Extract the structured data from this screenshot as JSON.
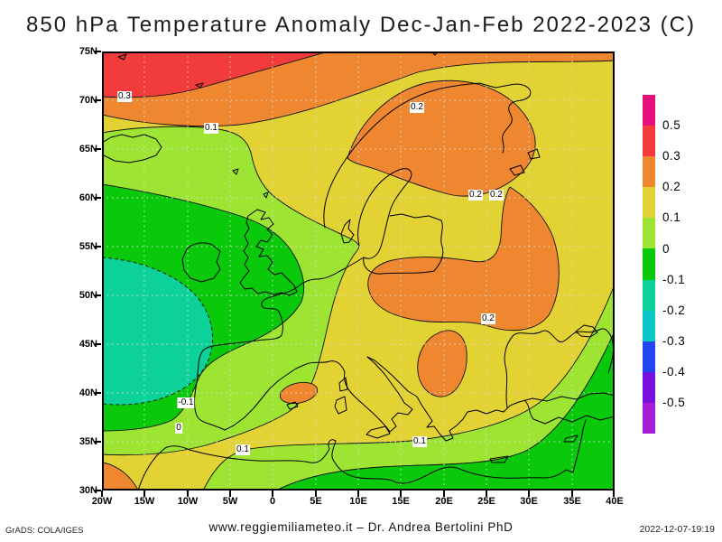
{
  "title": "850 hPa Temperature Anomaly Dec-Jan-Feb 2022-2023 (C)",
  "axes": {
    "lat_ticks": [
      "75N",
      "70N",
      "65N",
      "60N",
      "55N",
      "50N",
      "45N",
      "40N",
      "35N",
      "30N"
    ],
    "lon_ticks": [
      "20W",
      "15W",
      "10W",
      "5W",
      "0",
      "5E",
      "10E",
      "15E",
      "20E",
      "25E",
      "30E",
      "35E",
      "40E"
    ]
  },
  "colorbar": {
    "labels": [
      "0.5",
      "0.3",
      "0.2",
      "0.1",
      "0",
      "-0.1",
      "-0.2",
      "-0.3",
      "-0.4",
      "-0.5"
    ],
    "colors": [
      "#e60f7e",
      "#f23c3c",
      "#ef8630",
      "#e2d234",
      "#9ee433",
      "#0ac80a",
      "#0cd198",
      "#0ac8c8",
      "#2146ef",
      "#7a10dc",
      "#a81bdb"
    ]
  },
  "map": {
    "contour_labels": [
      {
        "text": "0.3"
      },
      {
        "text": "0.1"
      },
      {
        "text": "0.2"
      },
      {
        "text": "0.2"
      },
      {
        "text": "0.2"
      },
      {
        "text": "0.2"
      },
      {
        "text": "-0.1"
      },
      {
        "text": "0"
      },
      {
        "text": "0.1"
      },
      {
        "text": "0.1"
      }
    ]
  },
  "footer": {
    "left": "GrADS: COLA/IGES",
    "center": "www.reggiemiliameteo.it – Dr. Andrea Bertolini PhD",
    "right": "2022-12-07-19:19"
  },
  "chart_data": {
    "type": "filled_contour_map",
    "title": "850 hPa Temperature Anomaly Dec-Jan-Feb 2022-2023 (C)",
    "variable": "850 hPa temperature anomaly",
    "season": "Dec-Jan-Feb 2022-2023",
    "units": "C",
    "lon_range": [
      "20W",
      "40E"
    ],
    "lat_range": [
      "30N",
      "75N"
    ],
    "contour_levels": [
      -0.5,
      -0.4,
      -0.3,
      -0.2,
      -0.1,
      0,
      0.1,
      0.2,
      0.3,
      0.5
    ],
    "palette_low_to_high": [
      "#a81bdb",
      "#7a10dc",
      "#2146ef",
      "#0ac8c8",
      "#0cd198",
      "#0ac80a",
      "#9ee433",
      "#e2d234",
      "#ef8630",
      "#f23c3c",
      "#e60f7e"
    ],
    "negative_contours_dashed": true,
    "labeled_contour_values": [
      0.3,
      0.1,
      0.2,
      0.2,
      0.2,
      0.2,
      -0.1,
      0,
      0.1,
      0.1
    ],
    "regions": [
      {
        "band": "0.3 to 0.5",
        "color": "#f23c3c",
        "where": "Arctic band along the top edge (north of ~70N), west half"
      },
      {
        "band": "0.2 to 0.3",
        "color": "#ef8630",
        "where": "strip under the Arctic red band; large blob over northern Scandinavia/Finland extending SE over NW Russia, Ukraine/Romania and the central Balkans; small blob east of Spain; bottom-left corner over Morocco"
      },
      {
        "band": "0.1 to 0.2",
        "color": "#e2d234",
        "where": "background over most of central/eastern Europe and the Mediterranean"
      },
      {
        "band": "0 to 0.1",
        "color": "#9ee433",
        "where": "band from Iceland across France/Iberia; band along North Africa; diagonal band toward Caucasus"
      },
      {
        "band": "-0.1 to 0",
        "color": "#0ac80a",
        "where": "British Isles and near-Atlantic, inland North Africa (bottom), Turkey/Middle East (bottom right)"
      },
      {
        "band": "-0.2 to -0.1",
        "color": "#0cd198",
        "where": "coldest cell over the Atlantic west of Iberia/Biscay"
      }
    ],
    "grid": "5 degree dotted graticule",
    "legend_position": "right vertical colorbar"
  }
}
